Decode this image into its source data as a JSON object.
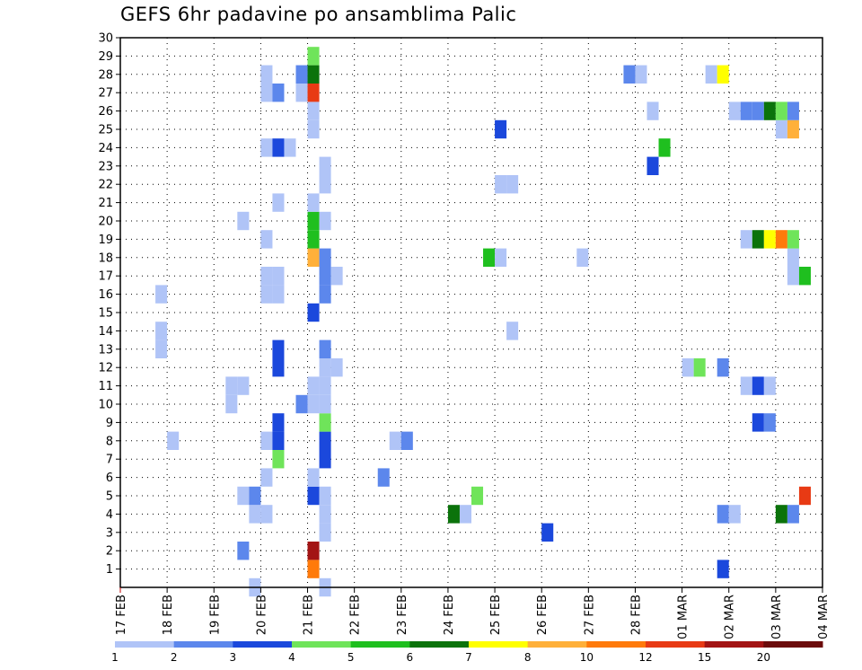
{
  "chart_data": {
    "type": "heatmap",
    "title": "GEFS 6hr padavine po ansamblima Palic",
    "x_tick_labels": [
      "17 FEB",
      "18 FEB",
      "19 FEB",
      "20 FEB",
      "21 FEB",
      "22 FEB",
      "23 FEB",
      "24 FEB",
      "25 FEB",
      "26 FEB",
      "27 FEB",
      "28 FEB",
      "01 MAR",
      "02 MAR",
      "03 MAR",
      "04 MAR"
    ],
    "y_tick_labels": [
      "1",
      "2",
      "3",
      "4",
      "5",
      "6",
      "7",
      "8",
      "9",
      "10",
      "11",
      "12",
      "13",
      "14",
      "15",
      "16",
      "17",
      "18",
      "19",
      "20",
      "21",
      "22",
      "23",
      "24",
      "25",
      "26",
      "27",
      "28",
      "29",
      "30"
    ],
    "xlim_days": [
      0,
      15
    ],
    "ylim_members": [
      0,
      30
    ],
    "time_step_hours": 6,
    "grid": true,
    "colorbar": {
      "colors": [
        "#b0c4f7",
        "#5c87ec",
        "#1b48dc",
        "#6fe45a",
        "#1fbf1f",
        "#0b730b",
        "#ffff00",
        "#ffb03a",
        "#ff7a0a",
        "#e83a14",
        "#a31414",
        "#6b0b0b"
      ],
      "tick_labels": [
        "1",
        "2",
        "3",
        "4",
        "5",
        "6",
        "7",
        "8",
        "10",
        "12",
        "15",
        "20"
      ]
    },
    "cells": [
      {
        "start": "19 FEB 18Z",
        "member": 0,
        "level": 1
      },
      {
        "start": "21 FEB 06Z",
        "member": 0,
        "level": 1
      },
      {
        "start": "21 FEB 00Z",
        "member": 1,
        "level": 9
      },
      {
        "start": "01 MAR 18Z",
        "member": 1,
        "level": 3
      },
      {
        "start": "21 FEB 00Z",
        "member": 2,
        "level": 11
      },
      {
        "start": "19 FEB 12Z",
        "member": 2,
        "level": 2
      },
      {
        "start": "21 FEB 06Z",
        "member": 3,
        "level": 1
      },
      {
        "start": "26 FEB 00Z",
        "member": 3,
        "level": 3
      },
      {
        "start": "19 FEB 18Z",
        "member": 4,
        "level": 1
      },
      {
        "start": "20 FEB 00Z",
        "member": 4,
        "level": 1
      },
      {
        "start": "21 FEB 06Z",
        "member": 4,
        "level": 1
      },
      {
        "start": "24 FEB 00Z",
        "member": 4,
        "level": 6
      },
      {
        "start": "24 FEB 06Z",
        "member": 4,
        "level": 1
      },
      {
        "start": "01 MAR 18Z",
        "member": 4,
        "level": 2
      },
      {
        "start": "02 MAR 00Z",
        "member": 4,
        "level": 1
      },
      {
        "start": "03 MAR 00Z",
        "member": 4,
        "level": 6
      },
      {
        "start": "03 MAR 06Z",
        "member": 4,
        "level": 2
      },
      {
        "start": "19 FEB 12Z",
        "member": 5,
        "level": 1
      },
      {
        "start": "19 FEB 18Z",
        "member": 5,
        "level": 2
      },
      {
        "start": "21 FEB 00Z",
        "member": 5,
        "level": 3
      },
      {
        "start": "21 FEB 06Z",
        "member": 5,
        "level": 1
      },
      {
        "start": "24 FEB 12Z",
        "member": 5,
        "level": 4
      },
      {
        "start": "03 MAR 12Z",
        "member": 5,
        "level": 10
      },
      {
        "start": "20 FEB 00Z",
        "member": 6,
        "level": 1
      },
      {
        "start": "21 FEB 00Z",
        "member": 6,
        "level": 1
      },
      {
        "start": "22 FEB 12Z",
        "member": 6,
        "level": 2
      },
      {
        "start": "20 FEB 06Z",
        "member": 7,
        "level": 4
      },
      {
        "start": "21 FEB 06Z",
        "member": 7,
        "level": 3
      },
      {
        "start": "18 FEB 00Z",
        "member": 8,
        "level": 1
      },
      {
        "start": "20 FEB 00Z",
        "member": 8,
        "level": 1
      },
      {
        "start": "20 FEB 06Z",
        "member": 8,
        "level": 3
      },
      {
        "start": "21 FEB 06Z",
        "member": 8,
        "level": 3
      },
      {
        "start": "22 FEB 18Z",
        "member": 8,
        "level": 1
      },
      {
        "start": "23 FEB 00Z",
        "member": 8,
        "level": 2
      },
      {
        "start": "20 FEB 06Z",
        "member": 9,
        "level": 3
      },
      {
        "start": "21 FEB 06Z",
        "member": 9,
        "level": 4
      },
      {
        "start": "02 MAR 12Z",
        "member": 9,
        "level": 3
      },
      {
        "start": "02 MAR 18Z",
        "member": 9,
        "level": 2
      },
      {
        "start": "19 FEB 06Z",
        "member": 10,
        "level": 1
      },
      {
        "start": "20 FEB 18Z",
        "member": 10,
        "level": 2
      },
      {
        "start": "21 FEB 00Z",
        "member": 10,
        "level": 1
      },
      {
        "start": "21 FEB 06Z",
        "member": 10,
        "level": 1
      },
      {
        "start": "19 FEB 06Z",
        "member": 11,
        "level": 1
      },
      {
        "start": "19 FEB 12Z",
        "member": 11,
        "level": 1
      },
      {
        "start": "21 FEB 00Z",
        "member": 11,
        "level": 1
      },
      {
        "start": "21 FEB 06Z",
        "member": 11,
        "level": 1
      },
      {
        "start": "02 MAR 06Z",
        "member": 11,
        "level": 1
      },
      {
        "start": "02 MAR 12Z",
        "member": 11,
        "level": 3
      },
      {
        "start": "02 MAR 18Z",
        "member": 11,
        "level": 1
      },
      {
        "start": "20 FEB 06Z",
        "member": 12,
        "level": 3
      },
      {
        "start": "21 FEB 06Z",
        "member": 12,
        "level": 1
      },
      {
        "start": "21 FEB 12Z",
        "member": 12,
        "level": 1
      },
      {
        "start": "01 MAR 00Z",
        "member": 12,
        "level": 1
      },
      {
        "start": "01 MAR 06Z",
        "member": 12,
        "level": 4
      },
      {
        "start": "01 MAR 18Z",
        "member": 12,
        "level": 2
      },
      {
        "start": "17 FEB 18Z",
        "member": 13,
        "level": 1
      },
      {
        "start": "20 FEB 06Z",
        "member": 13,
        "level": 3
      },
      {
        "start": "21 FEB 06Z",
        "member": 13,
        "level": 2
      },
      {
        "start": "17 FEB 18Z",
        "member": 14,
        "level": 1
      },
      {
        "start": "25 FEB 06Z",
        "member": 14,
        "level": 1
      },
      {
        "start": "21 FEB 00Z",
        "member": 15,
        "level": 3
      },
      {
        "start": "17 FEB 18Z",
        "member": 16,
        "level": 1
      },
      {
        "start": "20 FEB 00Z",
        "member": 16,
        "level": 1
      },
      {
        "start": "20 FEB 06Z",
        "member": 16,
        "level": 1
      },
      {
        "start": "21 FEB 06Z",
        "member": 16,
        "level": 2
      },
      {
        "start": "20 FEB 00Z",
        "member": 17,
        "level": 1
      },
      {
        "start": "20 FEB 06Z",
        "member": 17,
        "level": 1
      },
      {
        "start": "21 FEB 06Z",
        "member": 17,
        "level": 2
      },
      {
        "start": "21 FEB 12Z",
        "member": 17,
        "level": 1
      },
      {
        "start": "03 MAR 06Z",
        "member": 17,
        "level": 1
      },
      {
        "start": "03 MAR 12Z",
        "member": 17,
        "level": 5
      },
      {
        "start": "21 FEB 00Z",
        "member": 18,
        "level": 8
      },
      {
        "start": "21 FEB 06Z",
        "member": 18,
        "level": 2
      },
      {
        "start": "24 FEB 18Z",
        "member": 18,
        "level": 5
      },
      {
        "start": "25 FEB 00Z",
        "member": 18,
        "level": 1
      },
      {
        "start": "26 FEB 18Z",
        "member": 18,
        "level": 1
      },
      {
        "start": "03 MAR 06Z",
        "member": 18,
        "level": 1
      },
      {
        "start": "20 FEB 00Z",
        "member": 19,
        "level": 1
      },
      {
        "start": "21 FEB 00Z",
        "member": 19,
        "level": 5
      },
      {
        "start": "02 MAR 06Z",
        "member": 19,
        "level": 1
      },
      {
        "start": "02 MAR 12Z",
        "member": 19,
        "level": 6
      },
      {
        "start": "02 MAR 18Z",
        "member": 19,
        "level": 7
      },
      {
        "start": "03 MAR 00Z",
        "member": 19,
        "level": 9
      },
      {
        "start": "03 MAR 06Z",
        "member": 19,
        "level": 4
      },
      {
        "start": "19 FEB 12Z",
        "member": 20,
        "level": 1
      },
      {
        "start": "21 FEB 00Z",
        "member": 20,
        "level": 5
      },
      {
        "start": "21 FEB 06Z",
        "member": 20,
        "level": 1
      },
      {
        "start": "20 FEB 06Z",
        "member": 21,
        "level": 1
      },
      {
        "start": "21 FEB 00Z",
        "member": 21,
        "level": 1
      },
      {
        "start": "21 FEB 06Z",
        "member": 22,
        "level": 1
      },
      {
        "start": "25 FEB 00Z",
        "member": 22,
        "level": 1
      },
      {
        "start": "25 FEB 06Z",
        "member": 22,
        "level": 1
      },
      {
        "start": "21 FEB 06Z",
        "member": 23,
        "level": 1
      },
      {
        "start": "28 FEB 06Z",
        "member": 23,
        "level": 3
      },
      {
        "start": "20 FEB 00Z",
        "member": 24,
        "level": 1
      },
      {
        "start": "20 FEB 06Z",
        "member": 24,
        "level": 3
      },
      {
        "start": "20 FEB 12Z",
        "member": 24,
        "level": 1
      },
      {
        "start": "28 FEB 12Z",
        "member": 24,
        "level": 5
      },
      {
        "start": "21 FEB 00Z",
        "member": 25,
        "level": 1
      },
      {
        "start": "25 FEB 00Z",
        "member": 25,
        "level": 3
      },
      {
        "start": "03 MAR 00Z",
        "member": 25,
        "level": 1
      },
      {
        "start": "03 MAR 06Z",
        "member": 25,
        "level": 8
      },
      {
        "start": "21 FEB 00Z",
        "member": 26,
        "level": 1
      },
      {
        "start": "28 FEB 06Z",
        "member": 26,
        "level": 1
      },
      {
        "start": "02 MAR 00Z",
        "member": 26,
        "level": 1
      },
      {
        "start": "02 MAR 06Z",
        "member": 26,
        "level": 2
      },
      {
        "start": "02 MAR 12Z",
        "member": 26,
        "level": 2
      },
      {
        "start": "02 MAR 18Z",
        "member": 26,
        "level": 6
      },
      {
        "start": "03 MAR 00Z",
        "member": 26,
        "level": 4
      },
      {
        "start": "03 MAR 06Z",
        "member": 26,
        "level": 2
      },
      {
        "start": "20 FEB 00Z",
        "member": 27,
        "level": 1
      },
      {
        "start": "20 FEB 06Z",
        "member": 27,
        "level": 2
      },
      {
        "start": "20 FEB 18Z",
        "member": 27,
        "level": 1
      },
      {
        "start": "21 FEB 00Z",
        "member": 27,
        "level": 10
      },
      {
        "start": "20 FEB 00Z",
        "member": 28,
        "level": 1
      },
      {
        "start": "20 FEB 18Z",
        "member": 28,
        "level": 2
      },
      {
        "start": "21 FEB 00Z",
        "member": 28,
        "level": 6
      },
      {
        "start": "27 FEB 18Z",
        "member": 28,
        "level": 2
      },
      {
        "start": "28 FEB 00Z",
        "member": 28,
        "level": 1
      },
      {
        "start": "01 MAR 12Z",
        "member": 28,
        "level": 1
      },
      {
        "start": "01 MAR 18Z",
        "member": 28,
        "level": 7
      },
      {
        "start": "21 FEB 00Z",
        "member": 29,
        "level": 4
      }
    ]
  }
}
